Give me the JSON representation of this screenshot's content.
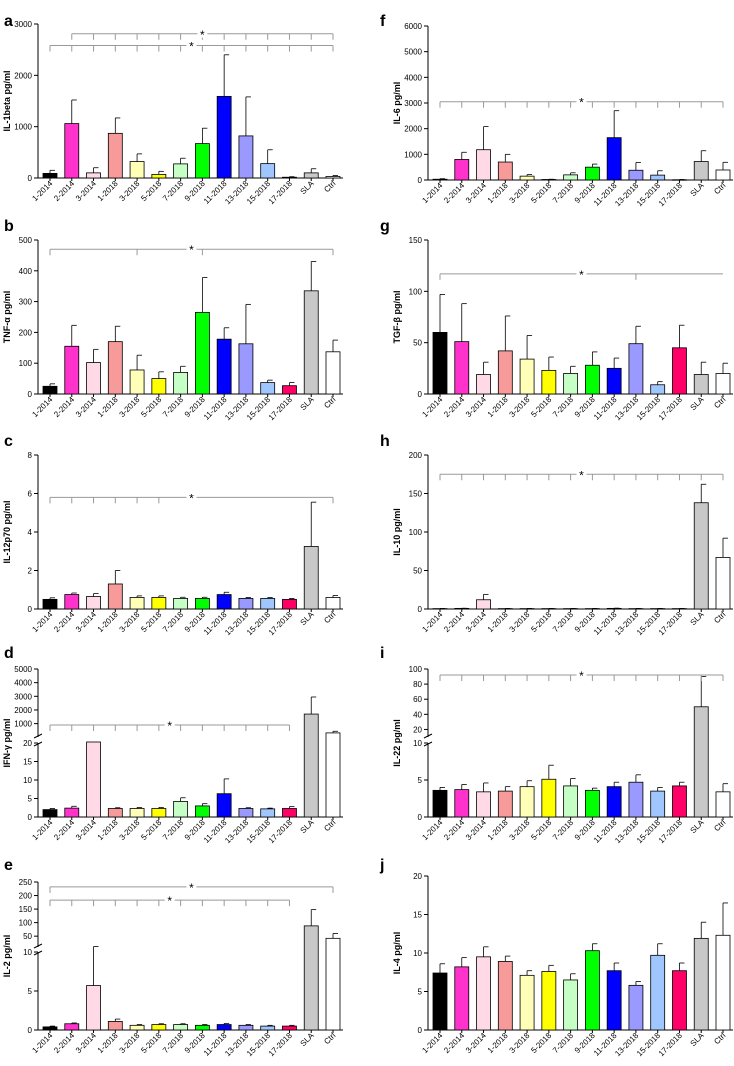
{
  "figure": {
    "categories": [
      "1-2014",
      "2-2014",
      "3-2014",
      "1-2018",
      "3-2018",
      "5-2018",
      "7-2018",
      "9-2018",
      "11-2018",
      "13-2018",
      "15-2018",
      "17-2018",
      "SLA",
      "Ctrl"
    ],
    "bar_colors": [
      "#000000",
      "#ff33cc",
      "#ffd9e6",
      "#f79a9a",
      "#ffffb8",
      "#ffff00",
      "#c6ffc6",
      "#00ff00",
      "#0000ff",
      "#9999ff",
      "#9fc6ff",
      "#ff0066",
      "#c8c8c8",
      "#ffffff"
    ]
  },
  "chart_data": [
    {
      "panel": "a",
      "type": "bar",
      "ylabel": "IL-1beta pg/ml",
      "ylim": [
        0,
        3000
      ],
      "yticks": [
        0,
        1000,
        2000,
        3000
      ],
      "values": [
        90,
        1060,
        100,
        870,
        320,
        70,
        275,
        670,
        1590,
        820,
        280,
        15,
        100,
        30
      ],
      "errors": [
        60,
        460,
        100,
        300,
        150,
        60,
        110,
        300,
        810,
        760,
        270,
        10,
        80,
        20
      ],
      "significance": [
        {
          "label": "*",
          "bracket_y": 2810,
          "from": "2-2014",
          "to": "Ctrl",
          "ticks": [
            "2-2014",
            "3-2014",
            "1-2018",
            "3-2018",
            "5-2018",
            "7-2018",
            "9-2018",
            "11-2018",
            "13-2018",
            "15-2018",
            "17-2018",
            "SLA",
            "Ctrl"
          ]
        },
        {
          "label": "*",
          "bracket_y": 2580,
          "from": "1-2014",
          "to": "Ctrl",
          "ticks": [
            "1-2014",
            "2-2014",
            "3-2014",
            "1-2018",
            "3-2018",
            "5-2018",
            "7-2018",
            "9-2018",
            "11-2018",
            "13-2018",
            "15-2018",
            "17-2018",
            "SLA",
            "Ctrl"
          ]
        }
      ]
    },
    {
      "panel": "b",
      "type": "bar",
      "ylabel": "TNF-α pg/ml",
      "ylim": [
        0,
        500
      ],
      "yticks": [
        0,
        100,
        200,
        300,
        400,
        500
      ],
      "values": [
        25,
        155,
        102,
        170,
        78,
        50,
        70,
        265,
        178,
        163,
        37,
        27,
        335,
        137
      ],
      "errors": [
        8,
        68,
        43,
        50,
        48,
        22,
        20,
        113,
        37,
        128,
        8,
        10,
        95,
        38
      ],
      "significance": [
        {
          "label": "*",
          "bracket_y": 470,
          "from": "1-2014",
          "to": "Ctrl",
          "ticks": [
            "1-2014",
            "3-2018",
            "9-2018",
            "Ctrl"
          ]
        }
      ]
    },
    {
      "panel": "c",
      "type": "bar",
      "ylabel": "IL-12p70 pg/ml",
      "ylim": [
        0,
        8
      ],
      "yticks": [
        0,
        2,
        4,
        6,
        8
      ],
      "values": [
        0.5,
        0.75,
        0.65,
        1.3,
        0.6,
        0.6,
        0.55,
        0.55,
        0.75,
        0.55,
        0.55,
        0.5,
        3.25,
        0.6
      ],
      "errors": [
        0.08,
        0.08,
        0.15,
        0.7,
        0.08,
        0.08,
        0.06,
        0.06,
        0.12,
        0.05,
        0.05,
        0.05,
        2.3,
        0.1
      ],
      "significance": [
        {
          "label": "*",
          "bracket_y": 5.8,
          "from": "1-2014",
          "to": "Ctrl",
          "ticks": [
            "1-2014",
            "2-2014",
            "3-2014",
            "1-2018",
            "3-2018",
            "5-2018",
            "Ctrl"
          ]
        }
      ]
    },
    {
      "panel": "d",
      "type": "bar",
      "ylabel": "IFN-γ pg/ml",
      "broken_axis": {
        "lower_ylim": [
          0,
          20
        ],
        "upper_ylim": [
          0,
          5000
        ]
      },
      "yticks_lower": [
        0,
        5,
        10,
        15,
        20
      ],
      "yticks_upper": [
        1000,
        2000,
        3000,
        4000,
        5000
      ],
      "values": [
        2,
        2.4,
        300,
        2.3,
        2.3,
        2.3,
        4.2,
        3,
        6.3,
        2.3,
        2.2,
        2.3,
        1700,
        320
      ],
      "errors": [
        0.3,
        0.5,
        0,
        0.2,
        0.3,
        0.3,
        1,
        0.6,
        4,
        0.2,
        0.2,
        0.5,
        1250,
        120
      ],
      "significance": [
        {
          "label": "*",
          "bracket_y": 900,
          "from": "1-2014",
          "to": "17-2018",
          "ticks": [
            "1-2014",
            "2-2014",
            "3-2014",
            "1-2018",
            "3-2018",
            "5-2018",
            "7-2018",
            "9-2018",
            "11-2018",
            "13-2018",
            "15-2018",
            "17-2018"
          ]
        }
      ]
    },
    {
      "panel": "e",
      "type": "bar",
      "ylabel": "IL-2 pg/ml",
      "broken_axis": {
        "lower_ylim": [
          0,
          10
        ],
        "upper_ylim": [
          0,
          250
        ]
      },
      "yticks_lower": [
        0,
        5,
        10
      ],
      "yticks_upper": [
        50,
        100,
        150,
        200,
        250
      ],
      "values": [
        0.4,
        0.8,
        5.7,
        1.1,
        0.6,
        0.7,
        0.7,
        0.6,
        0.7,
        0.6,
        0.5,
        0.5,
        88,
        42
      ],
      "errors": [
        0.1,
        0.1,
        6,
        0.3,
        0.1,
        0.1,
        0.1,
        0.1,
        0.15,
        0.1,
        0.1,
        0.1,
        60,
        18
      ],
      "significance": [
        {
          "label": "*",
          "bracket_y": 232,
          "from": "1-2014",
          "to": "Ctrl",
          "ticks": [
            "1-2014",
            "Ctrl"
          ]
        },
        {
          "label": "*",
          "bracket_y": 183,
          "from": "1-2014",
          "to": "17-2018",
          "ticks": [
            "1-2014",
            "2-2014",
            "3-2014",
            "1-2018",
            "3-2018",
            "5-2018",
            "7-2018",
            "9-2018",
            "11-2018",
            "13-2018",
            "15-2018",
            "17-2018"
          ]
        }
      ]
    },
    {
      "panel": "f",
      "type": "bar",
      "ylabel": "IL-6 pg/ml",
      "ylim": [
        0,
        6000
      ],
      "yticks": [
        0,
        1000,
        2000,
        3000,
        4000,
        5000,
        6000
      ],
      "values": [
        30,
        800,
        1180,
        700,
        150,
        20,
        200,
        500,
        1650,
        380,
        190,
        10,
        720,
        390
      ],
      "errors": [
        20,
        280,
        900,
        300,
        60,
        10,
        80,
        120,
        1050,
        300,
        170,
        10,
        420,
        300
      ],
      "significance": [
        {
          "label": "*",
          "bracket_y": 3050,
          "from": "1-2014",
          "to": "Ctrl",
          "ticks": [
            "1-2014",
            "2-2014",
            "3-2014",
            "1-2018",
            "3-2018",
            "5-2018",
            "7-2018",
            "9-2018",
            "11-2018",
            "13-2018",
            "15-2018",
            "17-2018",
            "SLA",
            "Ctrl"
          ]
        }
      ]
    },
    {
      "panel": "g",
      "type": "bar",
      "ylabel": "TGF-β pg/ml",
      "ylim": [
        0,
        150
      ],
      "yticks": [
        0,
        50,
        100,
        150
      ],
      "values": [
        60,
        51,
        19,
        42,
        34,
        23,
        20,
        28,
        25,
        49,
        9,
        45,
        19,
        20
      ],
      "errors": [
        37,
        37,
        12,
        34,
        23,
        13,
        7,
        13,
        10,
        17,
        3,
        22,
        12,
        10
      ],
      "significance": [
        {
          "label": "*",
          "bracket_y": 117,
          "from": "1-2014",
          "to": "Ctrl",
          "ticks": [
            "1-2014",
            "13-2018"
          ]
        }
      ]
    },
    {
      "panel": "h",
      "type": "bar",
      "ylabel": "IL-10 pg/ml",
      "ylim": [
        0,
        200
      ],
      "yticks": [
        0,
        50,
        100,
        150,
        200
      ],
      "values": [
        0.5,
        0.8,
        12,
        0.5,
        0.5,
        0.5,
        0.5,
        0.5,
        0.8,
        0.5,
        0.5,
        0.5,
        138,
        67
      ],
      "errors": [
        0.2,
        0.2,
        7,
        0.2,
        0.2,
        0.2,
        0.2,
        0.2,
        0.3,
        0.2,
        0.2,
        0.2,
        24,
        25
      ],
      "significance": [
        {
          "label": "*",
          "bracket_y": 175,
          "from": "1-2014",
          "to": "Ctrl",
          "ticks": [
            "1-2014",
            "2-2014",
            "3-2014",
            "1-2018",
            "3-2018",
            "5-2018",
            "7-2018",
            "9-2018",
            "11-2018",
            "13-2018",
            "15-2018",
            "17-2018",
            "SLA",
            "Ctrl"
          ]
        }
      ]
    },
    {
      "panel": "i",
      "type": "bar",
      "ylabel": "IL-22 pg/ml",
      "broken_axis": {
        "lower_ylim": [
          0,
          10
        ],
        "upper_ylim": [
          10,
          100
        ]
      },
      "yticks_lower": [
        0,
        5,
        10
      ],
      "yticks_upper": [
        20,
        40,
        60,
        80,
        100
      ],
      "values": [
        3.6,
        3.7,
        3.4,
        3.5,
        4.1,
        5.1,
        4.2,
        3.6,
        4.1,
        4.7,
        3.5,
        4.2,
        50,
        3.4
      ],
      "errors": [
        0.4,
        0.7,
        1.2,
        0.6,
        0.8,
        1.9,
        1,
        0.3,
        0.6,
        1,
        0.5,
        0.5,
        40,
        1.1
      ],
      "significance": [
        {
          "label": "*",
          "bracket_y": 92,
          "from": "1-2014",
          "to": "Ctrl",
          "ticks": [
            "1-2014",
            "2-2014",
            "3-2014",
            "1-2018",
            "3-2018",
            "5-2018",
            "7-2018",
            "9-2018",
            "11-2018",
            "13-2018",
            "15-2018",
            "17-2018",
            "SLA",
            "Ctrl"
          ]
        }
      ]
    },
    {
      "panel": "j",
      "type": "bar",
      "ylabel": "IL-4 pg/ml",
      "ylim": [
        0,
        20
      ],
      "yticks": [
        0,
        5,
        10,
        15,
        20
      ],
      "values": [
        7.4,
        8.2,
        9.5,
        8.9,
        7.1,
        7.6,
        6.5,
        10.3,
        7.7,
        5.8,
        9.7,
        7.7,
        11.9,
        12.3
      ],
      "errors": [
        1.2,
        1.2,
        1.3,
        0.7,
        0.6,
        0.8,
        0.8,
        0.9,
        1,
        0.5,
        1.5,
        1,
        2.1,
        4.2
      ],
      "significance": []
    }
  ]
}
